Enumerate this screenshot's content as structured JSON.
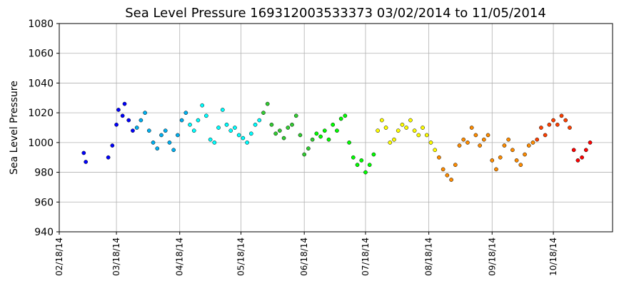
{
  "chart_data": {
    "type": "scatter",
    "title": "Sea Level Pressure 169312003533373  03/02/2014 to 11/05/2014",
    "ylabel": "Sea Level Pressure",
    "xlim": [
      "2014-02-18",
      "2014-11-16"
    ],
    "ylim": [
      940,
      1080
    ],
    "yticks": [
      940,
      960,
      980,
      1000,
      1020,
      1040,
      1060,
      1080
    ],
    "xticks": [
      {
        "value": "2014-02-18",
        "label": "02/18/14"
      },
      {
        "value": "2014-03-18",
        "label": "03/18/14"
      },
      {
        "value": "2014-04-18",
        "label": "04/18/14"
      },
      {
        "value": "2014-05-18",
        "label": "05/18/14"
      },
      {
        "value": "2014-06-18",
        "label": "06/18/14"
      },
      {
        "value": "2014-07-18",
        "label": "07/18/14"
      },
      {
        "value": "2014-08-18",
        "label": "08/18/14"
      },
      {
        "value": "2014-09-18",
        "label": "09/18/14"
      },
      {
        "value": "2014-10-18",
        "label": "10/18/14"
      }
    ],
    "grid": true,
    "series": [
      {
        "color": "#0000ff",
        "x": [
          "2014-03-02",
          "2014-03-03",
          "2014-03-14",
          "2014-03-16",
          "2014-03-18",
          "2014-03-19",
          "2014-03-21",
          "2014-03-22",
          "2014-03-24",
          "2014-03-26"
        ],
        "values": [
          993,
          987,
          990,
          998,
          1012,
          1022,
          1018,
          1026,
          1015,
          1008
        ]
      },
      {
        "color": "#00b0f0",
        "x": [
          "2014-03-28",
          "2014-03-30",
          "2014-04-01",
          "2014-04-03",
          "2014-04-05",
          "2014-04-07",
          "2014-04-09",
          "2014-04-11",
          "2014-04-13",
          "2014-04-15",
          "2014-04-17",
          "2014-04-19",
          "2014-04-21"
        ],
        "values": [
          1010,
          1015,
          1020,
          1008,
          1000,
          996,
          1005,
          1008,
          1000,
          995,
          1005,
          1015,
          1020
        ]
      },
      {
        "color": "#00ffff",
        "x": [
          "2014-04-23",
          "2014-04-25",
          "2014-04-27",
          "2014-04-29",
          "2014-05-01",
          "2014-05-03",
          "2014-05-05",
          "2014-05-07",
          "2014-05-09",
          "2014-05-11",
          "2014-05-13",
          "2014-05-15",
          "2014-05-17",
          "2014-05-19",
          "2014-05-21",
          "2014-05-23",
          "2014-05-25",
          "2014-05-27"
        ],
        "values": [
          1012,
          1008,
          1015,
          1025,
          1018,
          1002,
          1000,
          1010,
          1022,
          1012,
          1008,
          1010,
          1005,
          1003,
          1000,
          1006,
          1012,
          1015
        ]
      },
      {
        "color": "#32cd32",
        "x": [
          "2014-05-29",
          "2014-05-31",
          "2014-06-02",
          "2014-06-04",
          "2014-06-06",
          "2014-06-08",
          "2014-06-10",
          "2014-06-12",
          "2014-06-14",
          "2014-06-16",
          "2014-06-18",
          "2014-06-20",
          "2014-06-22"
        ],
        "values": [
          1020,
          1026,
          1012,
          1006,
          1008,
          1003,
          1010,
          1012,
          1018,
          1005,
          992,
          996,
          1002
        ]
      },
      {
        "color": "#00ff00",
        "x": [
          "2014-06-24",
          "2014-06-26",
          "2014-06-28",
          "2014-06-30",
          "2014-07-02",
          "2014-07-04",
          "2014-07-06",
          "2014-07-08",
          "2014-07-10",
          "2014-07-12",
          "2014-07-14",
          "2014-07-16",
          "2014-07-18",
          "2014-07-20",
          "2014-07-22"
        ],
        "values": [
          1006,
          1004,
          1008,
          1002,
          1012,
          1008,
          1016,
          1018,
          1000,
          990,
          985,
          988,
          980,
          985,
          992
        ]
      },
      {
        "color": "#ffff00",
        "x": [
          "2014-07-24",
          "2014-07-26",
          "2014-07-28",
          "2014-07-30",
          "2014-08-01",
          "2014-08-03",
          "2014-08-05",
          "2014-08-07",
          "2014-08-09",
          "2014-08-11",
          "2014-08-13",
          "2014-08-15",
          "2014-08-17",
          "2014-08-19",
          "2014-08-21"
        ],
        "values": [
          1008,
          1015,
          1010,
          1000,
          1002,
          1008,
          1012,
          1010,
          1015,
          1008,
          1005,
          1010,
          1005,
          1000,
          995
        ]
      },
      {
        "color": "#ff8c00",
        "x": [
          "2014-08-23",
          "2014-08-25",
          "2014-08-27",
          "2014-08-29",
          "2014-08-31",
          "2014-09-02",
          "2014-09-04",
          "2014-09-06",
          "2014-09-08",
          "2014-09-10",
          "2014-09-12",
          "2014-09-14",
          "2014-09-16",
          "2014-09-18",
          "2014-09-20",
          "2014-09-22",
          "2014-09-24",
          "2014-09-26",
          "2014-09-28",
          "2014-09-30",
          "2014-10-02",
          "2014-10-04",
          "2014-10-06",
          "2014-10-08"
        ],
        "values": [
          990,
          982,
          978,
          975,
          985,
          998,
          1002,
          1000,
          1010,
          1005,
          998,
          1002,
          1005,
          988,
          982,
          990,
          998,
          1002,
          995,
          988,
          985,
          992,
          998,
          1000
        ]
      },
      {
        "color": "#ff4000",
        "x": [
          "2014-10-10",
          "2014-10-12",
          "2014-10-14",
          "2014-10-16",
          "2014-10-18",
          "2014-10-20",
          "2014-10-22",
          "2014-10-24",
          "2014-10-26"
        ],
        "values": [
          1002,
          1010,
          1005,
          1012,
          1015,
          1012,
          1018,
          1015,
          1010
        ]
      },
      {
        "color": "#ff0000",
        "x": [
          "2014-10-28",
          "2014-10-30",
          "2014-11-01",
          "2014-11-03",
          "2014-11-05"
        ],
        "values": [
          995,
          988,
          990,
          995,
          1000
        ]
      }
    ]
  }
}
